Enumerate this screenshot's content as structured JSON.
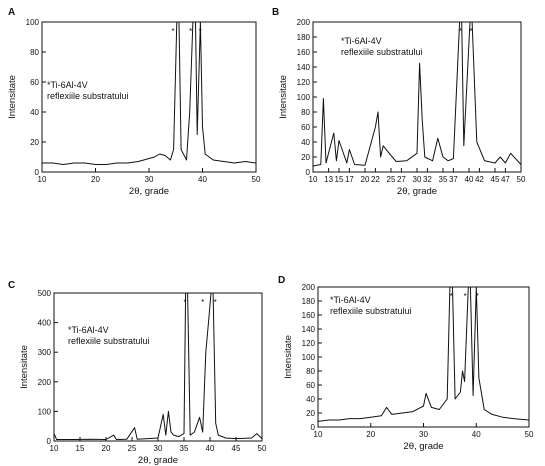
{
  "chart_data": [
    {
      "panel": "A",
      "type": "line",
      "xlabel": "2θ, grade",
      "ylabel": "Intensitate",
      "xlim": [
        10,
        50
      ],
      "ylim": [
        0,
        100
      ],
      "xticks": [
        "10",
        "20",
        "30",
        "40",
        "50"
      ],
      "yticks": [
        "0",
        "20",
        "40",
        "60",
        "80",
        "100"
      ],
      "annotation": [
        "*Ti-6Al-4V",
        "reflexiile substratului"
      ],
      "marker_label": "*",
      "markers": [
        34.5,
        37.8,
        39.6
      ],
      "series": [
        {
          "x": [
            10,
            12,
            14,
            16,
            18,
            20,
            22,
            24,
            26,
            28,
            30,
            31,
            32,
            33,
            34,
            34.6,
            35.2,
            35.6,
            36,
            37,
            37.6,
            38.2,
            38.7,
            39.0,
            39.6,
            40.0,
            40.5,
            42,
            44,
            46,
            48,
            50
          ],
          "y": [
            6,
            6,
            5,
            6,
            6,
            5,
            5,
            6,
            6,
            7,
            9,
            10,
            12,
            11,
            8,
            15,
            100,
            100,
            15,
            8,
            40,
            100,
            100,
            25,
            100,
            30,
            12,
            8,
            7,
            6,
            7,
            6
          ]
        }
      ]
    },
    {
      "panel": "B",
      "type": "line",
      "xlabel": "2θ, grade",
      "ylabel": "Intensitate",
      "xlim": [
        10,
        50
      ],
      "ylim": [
        0,
        200
      ],
      "xticks": [
        "10",
        "13",
        "15",
        "17",
        "20",
        "22",
        "25",
        "27",
        "30",
        "32",
        "35",
        "37",
        "40",
        "42",
        "45",
        "47",
        "50"
      ],
      "yticks": [
        "0",
        "20",
        "40",
        "60",
        "80",
        "100",
        "120",
        "140",
        "160",
        "180",
        "200"
      ],
      "annotation": [
        "*Ti-6Al-4V",
        "reflexiile substratului"
      ],
      "marker_label": "*",
      "markers": [
        38.3,
        40.4
      ],
      "series": [
        {
          "x": [
            10,
            11.5,
            12,
            12.5,
            14,
            14.5,
            15,
            16.5,
            17,
            18,
            20,
            22,
            22.5,
            23,
            23.5,
            25,
            26,
            28,
            30,
            30.5,
            31,
            31.5,
            33,
            34,
            35,
            36,
            37,
            38.2,
            38.6,
            39,
            40.2,
            40.6,
            41.5,
            43,
            45,
            46,
            47,
            48,
            50
          ],
          "y": [
            8,
            10,
            98,
            12,
            52,
            15,
            42,
            12,
            30,
            10,
            9,
            60,
            80,
            20,
            35,
            22,
            14,
            15,
            25,
            145,
            70,
            20,
            15,
            45,
            20,
            15,
            18,
            200,
            200,
            35,
            200,
            200,
            40,
            15,
            12,
            20,
            12,
            25,
            10
          ]
        }
      ]
    },
    {
      "panel": "C",
      "type": "line",
      "xlabel": "2θ, grade",
      "ylabel": "Intensitate",
      "xlim": [
        10,
        50
      ],
      "ylim": [
        0,
        500
      ],
      "xticks": [
        "10",
        "15",
        "20",
        "25",
        "30",
        "35",
        "40",
        "45",
        "50"
      ],
      "yticks": [
        "0",
        "100",
        "200",
        "300",
        "400",
        "500"
      ],
      "annotation": [
        "*Ti-6Al-4V",
        "reflexiile substratului"
      ],
      "marker_label": "*",
      "markers": [
        35.2,
        38.6,
        41.0
      ],
      "series": [
        {
          "x": [
            10,
            10.5,
            11,
            14,
            17,
            20,
            21.5,
            22,
            24,
            25.5,
            26,
            28,
            30,
            31,
            31.5,
            32,
            32.5,
            33,
            34,
            35,
            35.3,
            35.7,
            36.2,
            37,
            38,
            38.6,
            39.2,
            39.8,
            40.2,
            40.6,
            41.1,
            41.6,
            43,
            45,
            48,
            49,
            50
          ],
          "y": [
            25,
            5,
            5,
            5,
            6,
            5,
            20,
            5,
            6,
            45,
            6,
            8,
            10,
            90,
            20,
            100,
            30,
            20,
            15,
            25,
            500,
            500,
            20,
            30,
            80,
            30,
            300,
            420,
            500,
            500,
            60,
            20,
            10,
            8,
            10,
            25,
            8
          ]
        }
      ]
    },
    {
      "panel": "D",
      "type": "line",
      "xlabel": "2θ, grade",
      "ylabel": "Intensitate",
      "xlim": [
        10,
        50
      ],
      "ylim": [
        0,
        200
      ],
      "xticks": [
        "10",
        "20",
        "30",
        "40",
        "50"
      ],
      "yticks": [
        "0",
        "20",
        "40",
        "60",
        "80",
        "100",
        "120",
        "140",
        "160",
        "180",
        "200"
      ],
      "annotation": [
        "*Ti-6Al-4V",
        "reflexiile substratului"
      ],
      "marker_label": "*",
      "markers": [
        35.3,
        37.9,
        40.2
      ],
      "series": [
        {
          "x": [
            10,
            12,
            14,
            16,
            18,
            20,
            22,
            23,
            24,
            26,
            28,
            30,
            30.5,
            31.5,
            33,
            34.5,
            35.0,
            35.5,
            36,
            37,
            37.4,
            37.8,
            38.5,
            38.9,
            39.4,
            40.0,
            40.5,
            41.5,
            43,
            45,
            47,
            50
          ],
          "y": [
            8,
            10,
            10,
            12,
            12,
            14,
            16,
            28,
            18,
            20,
            22,
            30,
            48,
            28,
            25,
            40,
            200,
            200,
            40,
            50,
            80,
            65,
            200,
            200,
            45,
            200,
            70,
            25,
            18,
            14,
            12,
            10
          ]
        }
      ]
    }
  ]
}
